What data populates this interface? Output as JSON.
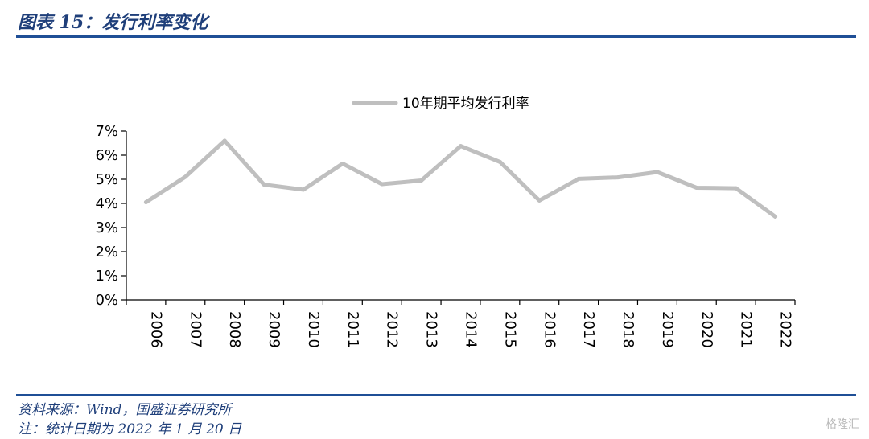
{
  "header": {
    "title": "图表 15：发行利率变化"
  },
  "footer": {
    "source": "资料来源：Wind，国盛证券研究所",
    "note": "注：统计日期为 2022 年 1 月 20 日"
  },
  "watermark": "格隆汇",
  "chart_data": {
    "type": "line",
    "title": "",
    "xlabel": "",
    "ylabel": "",
    "categories": [
      "2006",
      "2007",
      "2008",
      "2009",
      "2010",
      "2011",
      "2012",
      "2013",
      "2014",
      "2015",
      "2016",
      "2017",
      "2018",
      "2019",
      "2020",
      "2021",
      "2022"
    ],
    "series": [
      {
        "name": "10年期平均发行利率",
        "color": "#bfbfbf",
        "values": [
          4.05,
          5.1,
          6.6,
          4.78,
          4.57,
          5.65,
          4.8,
          4.95,
          6.38,
          5.72,
          4.12,
          5.02,
          5.08,
          5.3,
          4.65,
          4.63,
          3.45
        ]
      }
    ],
    "ylim": [
      0,
      7
    ],
    "yticks": [
      "0%",
      "1%",
      "2%",
      "3%",
      "4%",
      "5%",
      "6%",
      "7%"
    ],
    "grid": false,
    "legend_position": "top"
  }
}
